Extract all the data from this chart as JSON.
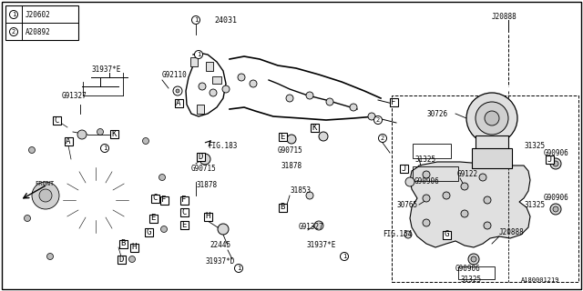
{
  "bg_color": "#ffffff",
  "line_color": "#000000",
  "text_color": "#000000",
  "gray_fill": "#e8e8e8",
  "diagram_id": "A180001219",
  "fig_width": 640,
  "fig_height": 320,
  "legend": [
    {
      "num": "1",
      "code": "J20602"
    },
    {
      "num": "2",
      "code": "A20892"
    }
  ]
}
